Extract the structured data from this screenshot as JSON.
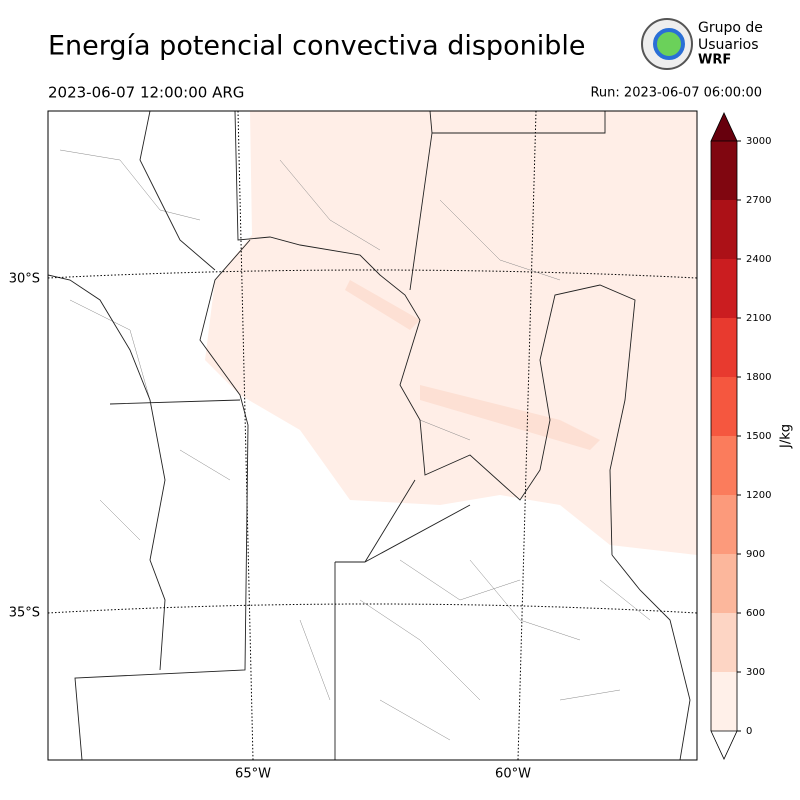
{
  "header": {
    "title": "Energía potencial convectiva disponible",
    "valid_time": "2023-06-07 12:00:00 ARG",
    "run_time": "Run: 2023-06-07 06:00:00",
    "logo": [
      "Grupo de",
      "Usuarios",
      "WRF"
    ]
  },
  "map": {
    "lat_labels": [
      "30°S",
      "35°S"
    ],
    "lon_labels": [
      "65°W",
      "60°W"
    ]
  },
  "colorbar": {
    "label": "J/kg",
    "lim": [
      0,
      3000
    ],
    "ticks": [
      0,
      300,
      600,
      900,
      1200,
      1500,
      1800,
      2100,
      2400,
      2700,
      3000
    ],
    "colors": [
      "#fff0e9",
      "#fdd5c4",
      "#fcb79c",
      "#fc9a7b",
      "#fb7c5c",
      "#f5573f",
      "#e83a2f",
      "#cb1d20",
      "#ac1117",
      "#800610"
    ],
    "over_color": "#67000d",
    "under_color": "#ffffff"
  }
}
